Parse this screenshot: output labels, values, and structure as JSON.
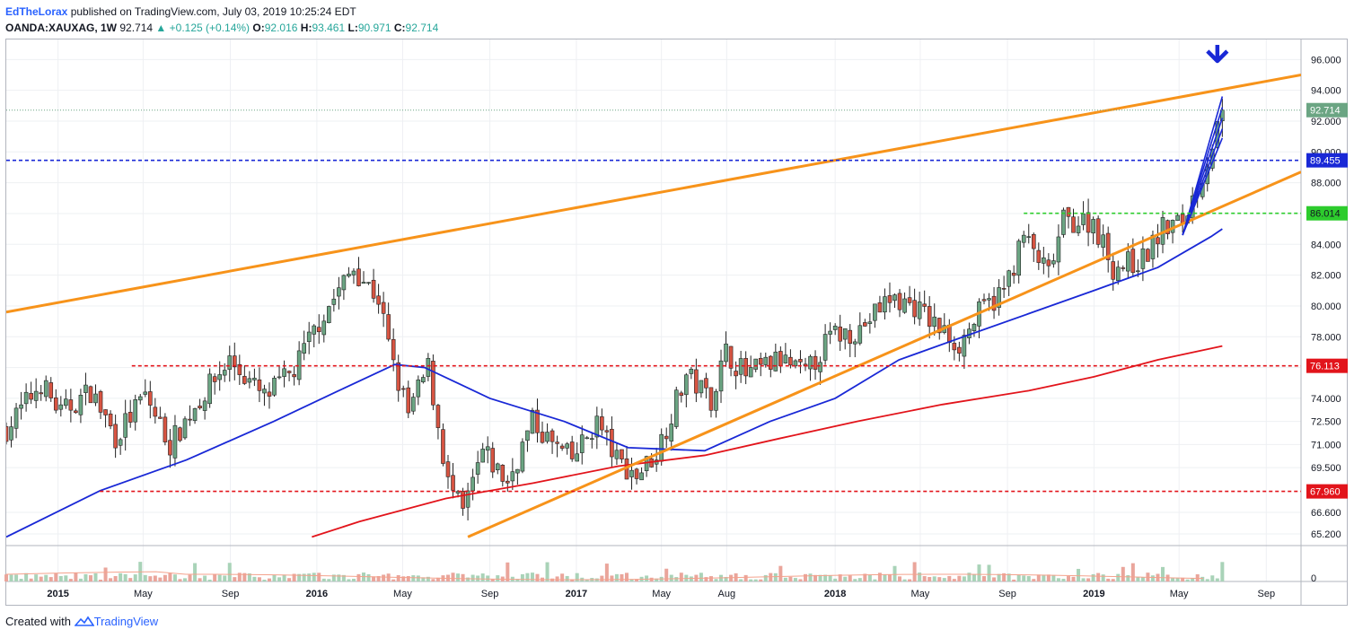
{
  "header": {
    "author": "EdTheLorax",
    "published": "published on TradingView.com, July 03, 2019 10:25:24 EDT",
    "symbol": "OANDA:XAUXAG, 1W",
    "last": "92.714",
    "change": "+0.125 (+0.14%)",
    "o_label": "O:",
    "o_val": "92.016",
    "h_label": "H:",
    "h_val": "93.461",
    "l_label": "L:",
    "l_val": "90.971",
    "c_label": "C:",
    "c_val": "92.714"
  },
  "footer": {
    "created": "Created with",
    "brand": "TradingView"
  },
  "colors": {
    "up": "#6ba583",
    "down": "#d75442",
    "orange": "#f7931a",
    "ma_blue": "#1928d6",
    "ma_red": "#e2141b",
    "grid": "#eef0f3"
  },
  "chart_data": {
    "type": "candlestick",
    "timeframe": "1W",
    "ylim": [
      64.5,
      97.3
    ],
    "y_ticks": [
      65.2,
      66.6,
      69.5,
      71.0,
      72.5,
      74.0,
      76.0,
      78.0,
      80.0,
      82.0,
      84.0,
      86.0,
      88.0,
      90.0,
      92.0,
      94.0,
      96.0
    ],
    "y_tick_labels": [
      "65.200",
      "66.600",
      "69.500",
      "71.000",
      "72.500",
      "74.000",
      "76.000",
      "78.000",
      "80.000",
      "82.000",
      "84.000",
      "86.000",
      "88.000",
      "90.000",
      "92.000",
      "94.000",
      "96.000"
    ],
    "x_range": [
      "2014-10-20",
      "2019-10-20"
    ],
    "x_ticks": [
      {
        "date": "2015-01-01",
        "label": "2015",
        "bold": true
      },
      {
        "date": "2015-05-01",
        "label": "May",
        "bold": false
      },
      {
        "date": "2015-09-01",
        "label": "Sep",
        "bold": false
      },
      {
        "date": "2016-01-01",
        "label": "2016",
        "bold": true
      },
      {
        "date": "2016-05-01",
        "label": "May",
        "bold": false
      },
      {
        "date": "2016-09-01",
        "label": "Sep",
        "bold": false
      },
      {
        "date": "2017-01-01",
        "label": "2017",
        "bold": true
      },
      {
        "date": "2017-05-01",
        "label": "May",
        "bold": false
      },
      {
        "date": "2017-08-01",
        "label": "Aug",
        "bold": false
      },
      {
        "date": "2018-01-01",
        "label": "2018",
        "bold": true
      },
      {
        "date": "2018-05-01",
        "label": "May",
        "bold": false
      },
      {
        "date": "2018-09-01",
        "label": "Sep",
        "bold": false
      },
      {
        "date": "2019-01-01",
        "label": "2019",
        "bold": true
      },
      {
        "date": "2019-05-01",
        "label": "May",
        "bold": false
      },
      {
        "date": "2019-09-01",
        "label": "Sep",
        "bold": false
      }
    ],
    "price_path": [
      [
        "2014-10-20",
        72.0
      ],
      [
        "2014-12-08",
        75.0
      ],
      [
        "2015-01-05",
        73.0
      ],
      [
        "2015-02-16",
        74.5
      ],
      [
        "2015-03-23",
        71.5
      ],
      [
        "2015-05-04",
        74.2
      ],
      [
        "2015-06-08",
        71.0
      ],
      [
        "2015-07-13",
        73.5
      ],
      [
        "2015-08-31",
        76.5
      ],
      [
        "2015-10-19",
        74.0
      ],
      [
        "2015-11-30",
        75.8
      ],
      [
        "2016-01-04",
        79.0
      ],
      [
        "2016-02-22",
        82.5
      ],
      [
        "2016-03-28",
        80.5
      ],
      [
        "2016-04-18",
        76.0
      ],
      [
        "2016-05-09",
        73.0
      ],
      [
        "2016-06-06",
        76.0
      ],
      [
        "2016-07-04",
        68.5
      ],
      [
        "2016-07-25",
        66.5
      ],
      [
        "2016-08-22",
        70.5
      ],
      [
        "2016-09-26",
        68.5
      ],
      [
        "2016-10-31",
        72.5
      ],
      [
        "2016-11-28",
        71.0
      ],
      [
        "2016-12-26",
        70.0
      ],
      [
        "2017-01-30",
        72.5
      ],
      [
        "2017-02-27",
        70.0
      ],
      [
        "2017-03-27",
        69.0
      ],
      [
        "2017-04-24",
        70.5
      ],
      [
        "2017-06-05",
        75.5
      ],
      [
        "2017-07-10",
        74.0
      ],
      [
        "2017-07-31",
        77.0
      ],
      [
        "2017-08-28",
        75.5
      ],
      [
        "2017-10-16",
        76.5
      ],
      [
        "2017-11-20",
        75.5
      ],
      [
        "2017-12-25",
        78.0
      ],
      [
        "2018-02-05",
        78.5
      ],
      [
        "2018-03-19",
        80.5
      ],
      [
        "2018-04-23",
        80.0
      ],
      [
        "2018-05-28",
        78.5
      ],
      [
        "2018-06-25",
        77.5
      ],
      [
        "2018-07-23",
        79.5
      ],
      [
        "2018-08-27",
        81.0
      ],
      [
        "2018-09-24",
        84.5
      ],
      [
        "2018-10-29",
        82.0
      ],
      [
        "2018-11-19",
        85.5
      ],
      [
        "2018-12-31",
        85.5
      ],
      [
        "2019-01-28",
        82.5
      ],
      [
        "2019-03-11",
        83.0
      ],
      [
        "2019-04-08",
        85.0
      ],
      [
        "2019-05-06",
        85.5
      ],
      [
        "2019-06-03",
        88.5
      ],
      [
        "2019-06-24",
        91.5
      ],
      [
        "2019-07-01",
        92.714
      ]
    ],
    "ma_blue": [
      [
        "2014-10-20",
        65.0
      ],
      [
        "2015-03-01",
        68.0
      ],
      [
        "2015-07-01",
        70.0
      ],
      [
        "2015-11-01",
        72.5
      ],
      [
        "2016-02-01",
        74.5
      ],
      [
        "2016-04-20",
        76.2
      ],
      [
        "2016-06-01",
        76.0
      ],
      [
        "2016-09-01",
        74.0
      ],
      [
        "2016-12-15",
        72.5
      ],
      [
        "2017-03-15",
        70.8
      ],
      [
        "2017-07-01",
        70.6
      ],
      [
        "2017-10-01",
        72.5
      ],
      [
        "2018-01-01",
        74.0
      ],
      [
        "2018-04-01",
        76.5
      ],
      [
        "2018-07-01",
        78.0
      ],
      [
        "2018-10-01",
        79.5
      ],
      [
        "2019-01-01",
        81.0
      ],
      [
        "2019-04-01",
        82.5
      ],
      [
        "2019-06-15",
        84.5
      ],
      [
        "2019-07-01",
        85.0
      ]
    ],
    "ma_red": [
      [
        "2015-12-25",
        65.0
      ],
      [
        "2016-03-01",
        66.0
      ],
      [
        "2016-07-01",
        67.5
      ],
      [
        "2016-11-01",
        68.5
      ],
      [
        "2017-03-01",
        69.6
      ],
      [
        "2017-07-01",
        70.3
      ],
      [
        "2017-10-15",
        71.4
      ],
      [
        "2018-02-01",
        72.5
      ],
      [
        "2018-06-01",
        73.6
      ],
      [
        "2018-10-01",
        74.5
      ],
      [
        "2019-01-01",
        75.4
      ],
      [
        "2019-04-01",
        76.5
      ],
      [
        "2019-07-01",
        77.4
      ]
    ],
    "trendlines": [
      {
        "from": [
          "2014-10-20",
          79.6
        ],
        "to": [
          "2019-10-20",
          95.0
        ],
        "color": "orange"
      },
      {
        "from": [
          "2016-08-01",
          65.0
        ],
        "to": [
          "2019-10-20",
          88.7
        ],
        "color": "orange"
      }
    ],
    "levels": [
      {
        "value": 89.455,
        "label": "89.455",
        "color": "#1928d6",
        "bg": "#1928d6",
        "from": "2014-10-20"
      },
      {
        "value": 86.014,
        "label": "86.014",
        "color": "#2dcc2d",
        "bg": "#2dcc2d",
        "from": "2018-09-24"
      },
      {
        "value": 76.113,
        "label": "76.113",
        "color": "#e2141b",
        "bg": "#e2141b",
        "from": "2015-04-15"
      },
      {
        "value": 67.96,
        "label": "67.960",
        "color": "#e2141b",
        "bg": "#e2141b",
        "from": "2015-03-01"
      }
    ],
    "last_price": {
      "value": 92.714,
      "label": "92.714"
    },
    "fan_lines": {
      "start": [
        "2019-05-06",
        84.6
      ],
      "ends": [
        90.9,
        91.5,
        92.2,
        92.9,
        93.6
      ]
    },
    "volume_zero_label": "0",
    "annotation": "arrow-down"
  }
}
